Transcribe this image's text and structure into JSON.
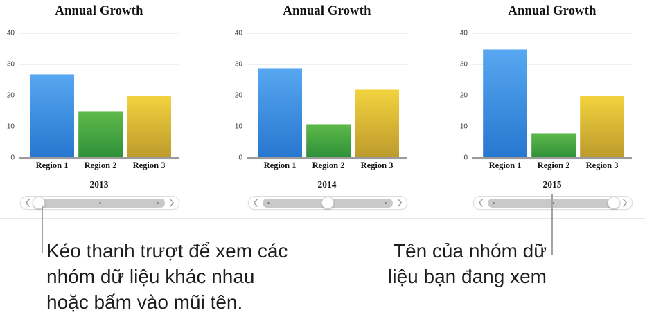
{
  "chart_data": [
    {
      "type": "bar",
      "title": "Annual Growth",
      "group_label": "2013",
      "categories": [
        "Region 1",
        "Region 2",
        "Region 3"
      ],
      "values": [
        27,
        15,
        20
      ],
      "ylim": [
        0,
        40
      ],
      "ytick_labels": [
        "40",
        "30",
        "20",
        "10",
        "0"
      ],
      "grid": true,
      "legend": "none"
    },
    {
      "type": "bar",
      "title": "Annual Growth",
      "group_label": "2014",
      "categories": [
        "Region 1",
        "Region 2",
        "Region 3"
      ],
      "values": [
        29,
        11,
        22
      ],
      "ylim": [
        0,
        40
      ],
      "ytick_labels": [
        "40",
        "30",
        "20",
        "10",
        "0"
      ],
      "grid": true,
      "legend": "none"
    },
    {
      "type": "bar",
      "title": "Annual Growth",
      "group_label": "2015",
      "categories": [
        "Region 1",
        "Region 2",
        "Region 3"
      ],
      "values": [
        35,
        8,
        20
      ],
      "ylim": [
        0,
        40
      ],
      "ytick_labels": [
        "40",
        "30",
        "20",
        "10",
        "0"
      ],
      "grid": true,
      "legend": "none"
    }
  ],
  "series_colors": [
    {
      "name": "Region 1",
      "top": "#58a7f1",
      "bottom": "#2677cf"
    },
    {
      "name": "Region 2",
      "top": "#5fba4a",
      "bottom": "#2e8f39"
    },
    {
      "name": "Region 3",
      "top": "#f2d33d",
      "bottom": "#bd9a2d"
    }
  ],
  "sliders": [
    {
      "thumb_position": "left",
      "dot_positions": [
        "middle",
        "right"
      ],
      "left_arrow_icon": "chevron-left",
      "right_arrow_icon": "chevron-right"
    },
    {
      "thumb_position": "middle",
      "dot_positions": [
        "left",
        "right"
      ],
      "left_arrow_icon": "chevron-left",
      "right_arrow_icon": "chevron-right"
    },
    {
      "thumb_position": "right",
      "dot_positions": [
        "left",
        "middle"
      ],
      "left_arrow_icon": "chevron-left",
      "right_arrow_icon": "chevron-right"
    }
  ],
  "annotations": {
    "slider_note_lines": [
      "Kéo thanh trượt để xem các",
      "nhóm dữ liệu khác nhau",
      "hoặc bấm vào mũi tên."
    ],
    "group_name_note_lines": [
      "Tên của nhóm dữ",
      "liệu bạn đang xem"
    ]
  },
  "colors": {
    "callout_line": "#a3a3a3",
    "axis_line": "#9b9b9b",
    "slider_track": "#c9c9c9",
    "slider_dot": "#7e7e7e",
    "slider_chevron": "#9b9b9b"
  }
}
